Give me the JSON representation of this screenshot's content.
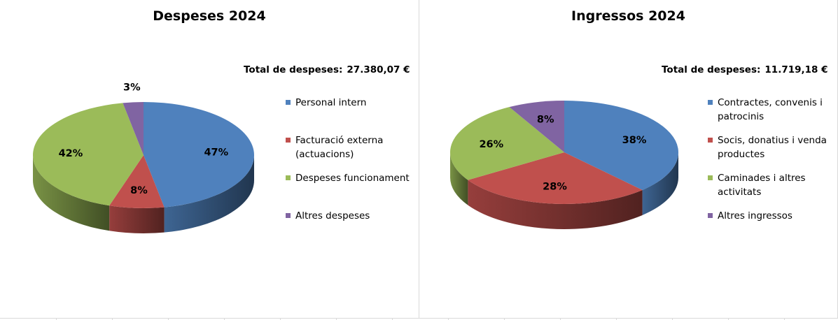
{
  "chart_data": [
    {
      "type": "pie",
      "title": "Despeses 2024",
      "total_label": "Total  de despeses:",
      "total_value": "27.380,07 €",
      "categories": [
        "Personal intern",
        "Facturació externa (actuacions)",
        "Despeses funcionament",
        "Altres despeses"
      ],
      "values": [
        47,
        8,
        42,
        3
      ],
      "data_labels": [
        "47%",
        "8%",
        "42%",
        "3%"
      ],
      "colors": [
        "#4F81BD",
        "#C0504D",
        "#9BBB59",
        "#8064A2"
      ],
      "legend_position": "right"
    },
    {
      "type": "pie",
      "title": "Ingressos 2024",
      "total_label": "Total  de despeses:",
      "total_value": "11.719,18 €",
      "categories": [
        "Contractes, convenis i patrocinis",
        "Socis, donatius i venda productes",
        "Caminades i altres activitats",
        "Altres ingressos"
      ],
      "values": [
        38,
        28,
        26,
        8
      ],
      "data_labels": [
        "38%",
        "28%",
        "26%",
        "8%"
      ],
      "colors": [
        "#4F81BD",
        "#C0504D",
        "#9BBB59",
        "#8064A2"
      ],
      "legend_position": "right"
    }
  ]
}
